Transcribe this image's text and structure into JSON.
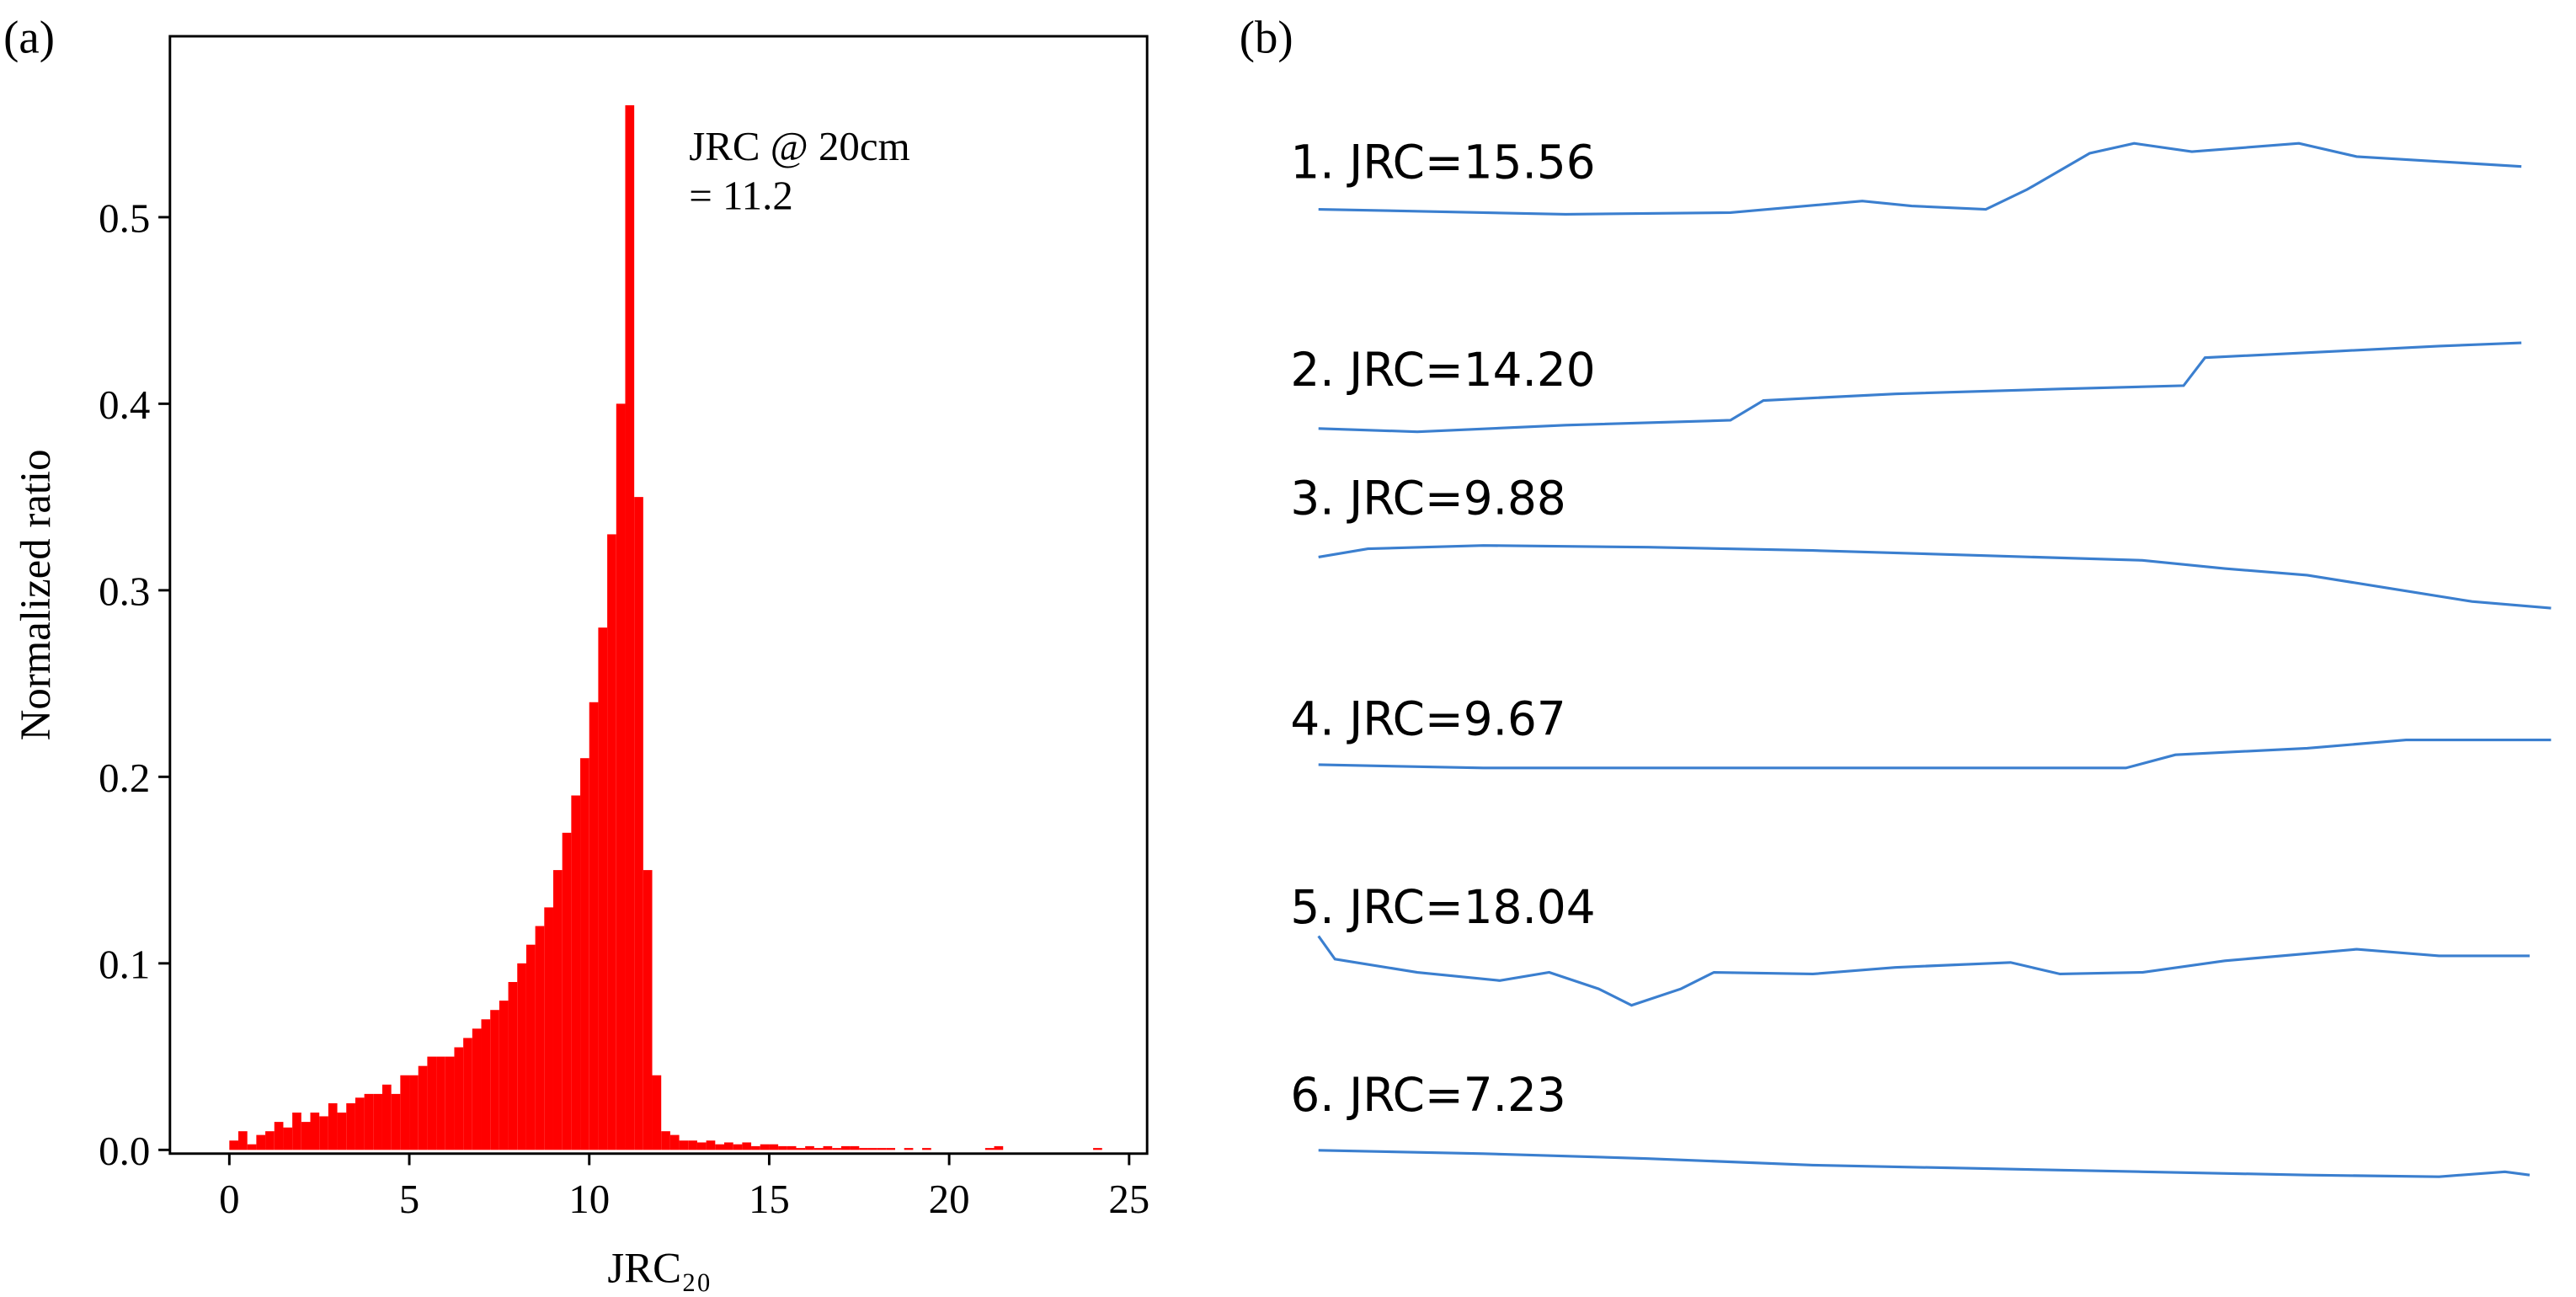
{
  "chart_data": {
    "type": "histogram",
    "panel_label": "(a)",
    "xlabel": "JRC₂₀",
    "ylabel": "Normalized ratio",
    "annotation": [
      "JRC @ 20cm",
      "= 11.2"
    ],
    "color": "#ff0000",
    "xlim": [
      -1.65,
      25.5
    ],
    "ylim": [
      -0.002,
      0.597
    ],
    "xticks": [
      0,
      5,
      10,
      15,
      20,
      25
    ],
    "yticks": [
      {
        "value": 0,
        "label": "0.0"
      },
      0.1,
      0.2,
      0.3,
      0.4,
      0.5
    ],
    "bins": [
      0,
      0.25,
      0.5,
      0.75,
      1,
      1.25,
      1.5,
      1.75,
      2,
      2.25,
      2.5,
      2.75,
      3,
      3.25,
      3.5,
      3.75,
      4,
      4.25,
      4.5,
      4.75,
      5,
      5.25,
      5.5,
      5.75,
      6,
      6.25,
      6.5,
      6.75,
      7,
      7.25,
      7.5,
      7.75,
      8,
      8.25,
      8.5,
      8.75,
      9,
      9.25,
      9.5,
      9.75,
      10,
      10.25,
      10.5,
      10.75,
      11,
      11.25,
      11.5,
      11.75,
      12,
      12.25,
      12.5,
      12.75,
      13,
      13.25,
      13.5,
      13.75,
      14,
      14.25,
      14.5,
      14.75,
      15,
      15.25,
      15.5,
      15.75,
      16,
      16.25,
      16.5,
      16.75,
      17,
      17.25,
      17.5,
      17.75,
      18,
      18.25,
      18.5,
      18.75,
      19,
      19.25,
      19.5,
      19.75,
      20,
      20.25,
      20.5,
      20.75,
      21,
      21.25,
      21.5,
      21.75,
      22,
      22.25,
      22.5,
      22.75,
      23,
      23.25,
      23.5,
      23.75,
      24,
      24.25,
      24.5,
      24.75,
      25
    ],
    "values": [
      0.005,
      0.01,
      0.003,
      0.008,
      0.01,
      0.015,
      0.012,
      0.02,
      0.015,
      0.02,
      0.018,
      0.025,
      0.02,
      0.025,
      0.028,
      0.03,
      0.03,
      0.035,
      0.03,
      0.04,
      0.04,
      0.045,
      0.05,
      0.05,
      0.05,
      0.055,
      0.06,
      0.065,
      0.07,
      0.075,
      0.08,
      0.09,
      0.1,
      0.11,
      0.12,
      0.13,
      0.15,
      0.17,
      0.19,
      0.21,
      0.24,
      0.28,
      0.33,
      0.4,
      0.56,
      0.35,
      0.15,
      0.04,
      0.01,
      0.008,
      0.005,
      0.005,
      0.004,
      0.005,
      0.003,
      0.004,
      0.003,
      0.004,
      0.002,
      0.003,
      0.003,
      0.002,
      0.002,
      0.001,
      0.002,
      0.001,
      0.002,
      0.001,
      0.002,
      0.002,
      0.001,
      0.001,
      0.001,
      0.001,
      0,
      0.001,
      0,
      0.001,
      0,
      0,
      0,
      0,
      0,
      0,
      0.001,
      0.002,
      0,
      0,
      0,
      0,
      0,
      0,
      0,
      0,
      0,
      0,
      0.001,
      0,
      0,
      0
    ]
  },
  "panel_b": {
    "panel_label": "(b)",
    "profiles": [
      "1. JRC=15.56",
      "2. JRC=14.20",
      "3. JRC=9.88",
      "4. JRC=9.67",
      "5. JRC=18.04",
      "6. JRC=7.23"
    ]
  }
}
